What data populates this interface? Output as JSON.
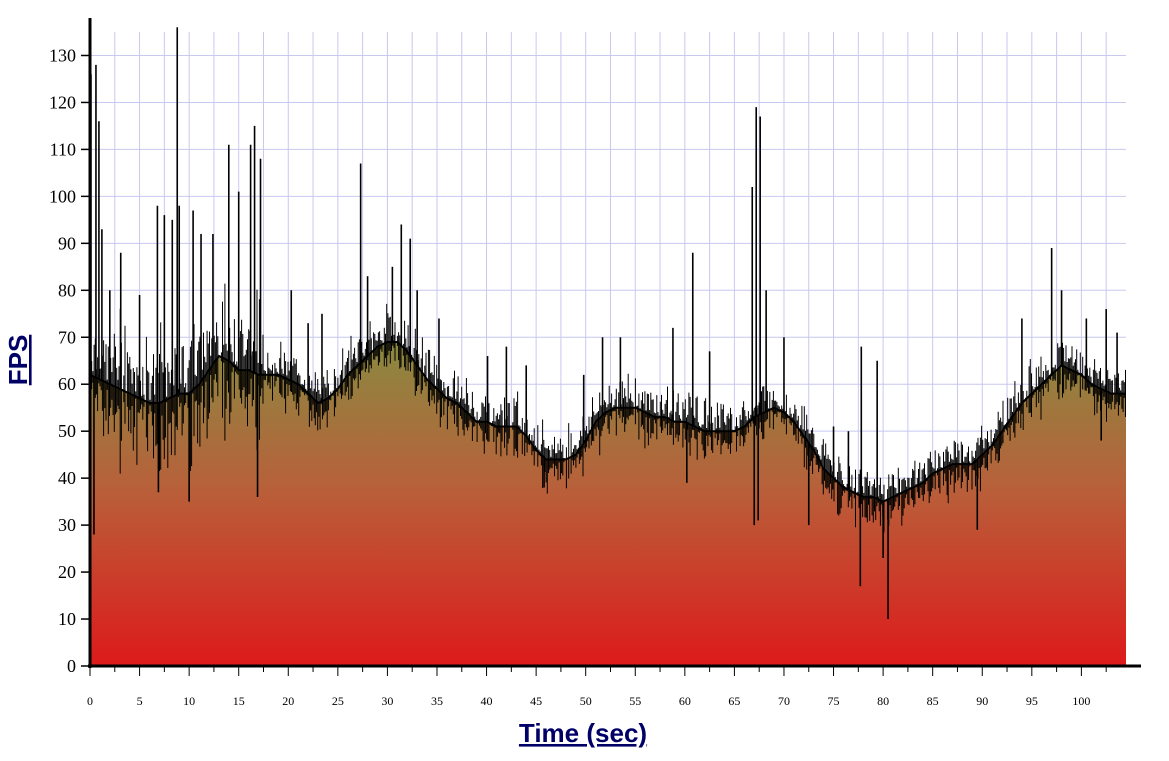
{
  "chart_data": {
    "type": "area",
    "xlabel": "Time (sec)",
    "ylabel": "FPS",
    "xlim": [
      0,
      104.5
    ],
    "ylim": [
      0,
      135
    ],
    "x_ticks": [
      0,
      5,
      10,
      15,
      20,
      25,
      30,
      35,
      40,
      45,
      50,
      55,
      60,
      65,
      70,
      75,
      80,
      85,
      90,
      95,
      100
    ],
    "x_tick_labels": [
      "0",
      "5",
      "10",
      "15",
      "20",
      "25",
      "30",
      "35",
      "40",
      "45",
      "50",
      "55",
      "60",
      "65",
      "70",
      "75",
      "80",
      "85",
      "90",
      "95",
      "100"
    ],
    "y_ticks": [
      0,
      10,
      20,
      30,
      40,
      50,
      60,
      70,
      80,
      90,
      100,
      110,
      120,
      130
    ],
    "y_tick_labels": [
      "0",
      "10",
      "20",
      "30",
      "40",
      "50",
      "60",
      "70",
      "80",
      "90",
      "100",
      "110",
      "120",
      "130"
    ],
    "grid": true,
    "colors": {
      "grid": "#c8c8f0",
      "line": "#000000",
      "fill_top": "#8a8a40",
      "fill_bottom": "#dd1a1a",
      "axis_title": "#000066"
    },
    "series": [
      {
        "x": [
          0,
          1,
          2,
          3,
          4,
          5,
          6,
          7,
          8,
          9,
          10,
          11,
          12,
          13,
          14,
          15,
          16,
          17,
          18,
          19,
          20,
          21,
          22,
          23,
          24,
          25,
          26,
          27,
          28,
          29,
          30,
          31,
          32,
          33,
          34,
          35,
          36,
          37,
          38,
          39,
          40,
          41,
          42,
          43,
          44,
          45,
          46,
          47,
          48,
          49,
          50,
          51,
          52,
          53,
          54,
          55,
          56,
          57,
          58,
          59,
          60,
          61,
          62,
          63,
          64,
          65,
          66,
          67,
          68,
          69,
          70,
          71,
          72,
          73,
          74,
          75,
          76,
          77,
          78,
          79,
          80,
          81,
          82,
          83,
          84,
          85,
          86,
          87,
          88,
          89,
          90,
          91,
          92,
          93,
          94,
          95,
          96,
          97,
          98,
          99,
          100,
          101,
          102,
          103,
          104,
          104.5
        ],
        "y": [
          62,
          61,
          60,
          59,
          58,
          57,
          56,
          56,
          57,
          58,
          58,
          60,
          63,
          66,
          65,
          63,
          63,
          62,
          62,
          62,
          61,
          60,
          58,
          56,
          57,
          59,
          62,
          64,
          66,
          68,
          69,
          69,
          67,
          64,
          61,
          59,
          57,
          56,
          54,
          52,
          52,
          51,
          51,
          51,
          49,
          46,
          44,
          44,
          44,
          45,
          48,
          52,
          54,
          55,
          55,
          55,
          54,
          53,
          53,
          52,
          52,
          51,
          50,
          50,
          50,
          50,
          51,
          53,
          54,
          55,
          54,
          52,
          49,
          46,
          42,
          40,
          38,
          37,
          36,
          36,
          35,
          36,
          37,
          38,
          39,
          41,
          42,
          43,
          43,
          43,
          45,
          47,
          50,
          53,
          56,
          58,
          60,
          62,
          64,
          63,
          62,
          60,
          59,
          58,
          58,
          58
        ]
      }
    ],
    "spikes": [
      {
        "x": 0.1,
        "y": 126
      },
      {
        "x": 0.4,
        "y": 28
      },
      {
        "x": 0.6,
        "y": 128
      },
      {
        "x": 0.9,
        "y": 116
      },
      {
        "x": 1.2,
        "y": 93
      },
      {
        "x": 2.0,
        "y": 80
      },
      {
        "x": 3.1,
        "y": 88
      },
      {
        "x": 5.0,
        "y": 79
      },
      {
        "x": 6.8,
        "y": 98
      },
      {
        "x": 6.9,
        "y": 37
      },
      {
        "x": 7.5,
        "y": 96
      },
      {
        "x": 8.3,
        "y": 95
      },
      {
        "x": 8.8,
        "y": 136
      },
      {
        "x": 9.0,
        "y": 98
      },
      {
        "x": 10.0,
        "y": 35
      },
      {
        "x": 10.4,
        "y": 97
      },
      {
        "x": 11.2,
        "y": 92
      },
      {
        "x": 12.4,
        "y": 92
      },
      {
        "x": 14.0,
        "y": 111
      },
      {
        "x": 15.0,
        "y": 101
      },
      {
        "x": 16.2,
        "y": 111
      },
      {
        "x": 16.6,
        "y": 115
      },
      {
        "x": 16.9,
        "y": 36
      },
      {
        "x": 17.2,
        "y": 108
      },
      {
        "x": 20.3,
        "y": 80
      },
      {
        "x": 22.0,
        "y": 73
      },
      {
        "x": 23.4,
        "y": 75
      },
      {
        "x": 27.3,
        "y": 107
      },
      {
        "x": 28.0,
        "y": 83
      },
      {
        "x": 30.5,
        "y": 85
      },
      {
        "x": 31.4,
        "y": 94
      },
      {
        "x": 32.3,
        "y": 91
      },
      {
        "x": 33.0,
        "y": 80
      },
      {
        "x": 35.2,
        "y": 74
      },
      {
        "x": 40.1,
        "y": 66
      },
      {
        "x": 42.0,
        "y": 68
      },
      {
        "x": 44.0,
        "y": 64
      },
      {
        "x": 45.8,
        "y": 38
      },
      {
        "x": 49.8,
        "y": 62
      },
      {
        "x": 51.7,
        "y": 70
      },
      {
        "x": 53.5,
        "y": 70
      },
      {
        "x": 58.8,
        "y": 72
      },
      {
        "x": 60.2,
        "y": 39
      },
      {
        "x": 60.8,
        "y": 88
      },
      {
        "x": 62.5,
        "y": 67
      },
      {
        "x": 66.8,
        "y": 102
      },
      {
        "x": 67.0,
        "y": 30
      },
      {
        "x": 67.2,
        "y": 119
      },
      {
        "x": 67.4,
        "y": 31
      },
      {
        "x": 67.6,
        "y": 117
      },
      {
        "x": 68.2,
        "y": 80
      },
      {
        "x": 70.0,
        "y": 70
      },
      {
        "x": 72.5,
        "y": 30
      },
      {
        "x": 75.0,
        "y": 51
      },
      {
        "x": 76.5,
        "y": 50
      },
      {
        "x": 77.7,
        "y": 17
      },
      {
        "x": 77.8,
        "y": 68
      },
      {
        "x": 79.4,
        "y": 65
      },
      {
        "x": 80.0,
        "y": 23
      },
      {
        "x": 80.5,
        "y": 10
      },
      {
        "x": 89.5,
        "y": 29
      },
      {
        "x": 94.0,
        "y": 74
      },
      {
        "x": 97.0,
        "y": 89
      },
      {
        "x": 98.0,
        "y": 80
      },
      {
        "x": 100.5,
        "y": 74
      },
      {
        "x": 102.0,
        "y": 48
      },
      {
        "x": 102.5,
        "y": 76
      },
      {
        "x": 103.6,
        "y": 71
      }
    ]
  }
}
